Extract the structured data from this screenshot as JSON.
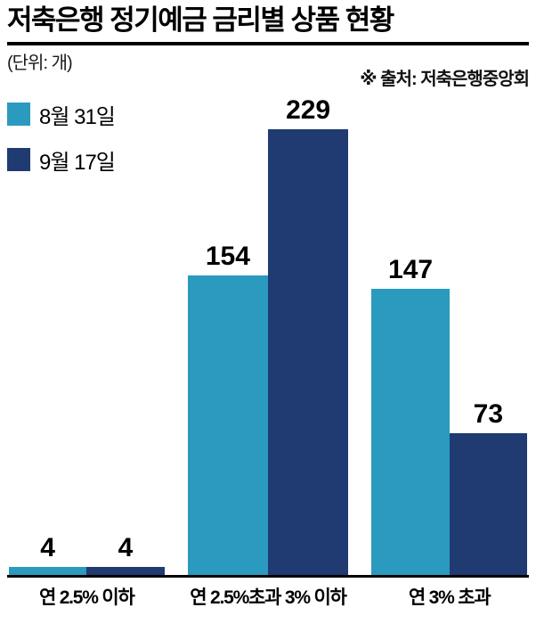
{
  "header": {
    "title": "저축은행 정기예금 금리별 상품 현황",
    "unit": "(단위: 개)",
    "source": "※ 출처: 저축은행중앙회"
  },
  "legend": [
    {
      "label": "8월 31일",
      "color": "#2B9ABF"
    },
    {
      "label": "9월 17일",
      "color": "#1F3B72"
    }
  ],
  "chart_data": {
    "type": "bar",
    "title": "저축은행 정기예금 금리별 상품 현황",
    "unit_label": "(단위: 개)",
    "source_label": "※ 출처: 저축은행중앙회",
    "categories": [
      "연 2.5% 이하",
      "연 2.5%초과 3% 이하",
      "연 3% 초과"
    ],
    "series": [
      {
        "name": "8월 31일",
        "color": "#2B9ABF",
        "values": [
          4,
          154,
          147
        ]
      },
      {
        "name": "9월 17일",
        "color": "#1F3B72",
        "values": [
          4,
          229,
          73
        ]
      }
    ],
    "ylabel": "개",
    "ylim": [
      0,
      229
    ],
    "grid": false,
    "legend_position": "top-left",
    "value_labels": true
  }
}
